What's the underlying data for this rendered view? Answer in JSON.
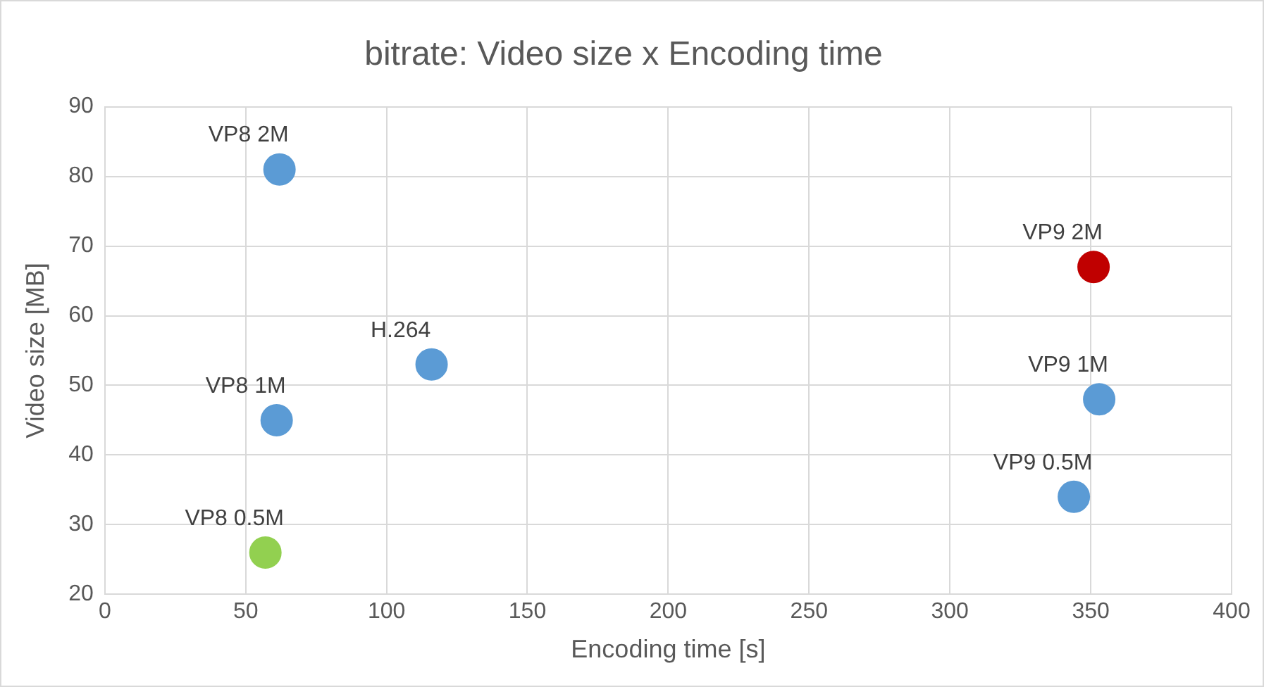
{
  "chart_data": {
    "type": "scatter",
    "title": "bitrate: Video size x Encoding time",
    "xlabel": "Encoding time [s]",
    "ylabel": "Video size [MB]",
    "x": [
      62,
      61,
      57,
      116,
      351,
      353,
      344
    ],
    "values": [
      81,
      45,
      26,
      53,
      67,
      48,
      34
    ],
    "colors": [
      "#5b9bd5",
      "#5b9bd5",
      "#92d050",
      "#5b9bd5",
      "#c00000",
      "#5b9bd5",
      "#5b9bd5"
    ],
    "annotations": [
      {
        "text": "VP8 2M",
        "x": 62,
        "y": 81
      },
      {
        "text": "VP8 1M",
        "x": 61,
        "y": 45
      },
      {
        "text": "VP8 0.5M",
        "x": 57,
        "y": 26
      },
      {
        "text": "H.264",
        "x": 116,
        "y": 53
      },
      {
        "text": "VP9 2M",
        "x": 351,
        "y": 67
      },
      {
        "text": "VP9 1M",
        "x": 353,
        "y": 48
      },
      {
        "text": "VP9 0.5M",
        "x": 344,
        "y": 34
      }
    ],
    "xlim": [
      0,
      400
    ],
    "xticks": [
      0,
      50,
      100,
      150,
      200,
      250,
      300,
      350,
      400
    ],
    "ylim": [
      20,
      90
    ],
    "yticks": [
      20,
      30,
      40,
      50,
      60,
      70,
      80,
      90
    ],
    "grid": true,
    "legend": false,
    "marker": "circle"
  }
}
